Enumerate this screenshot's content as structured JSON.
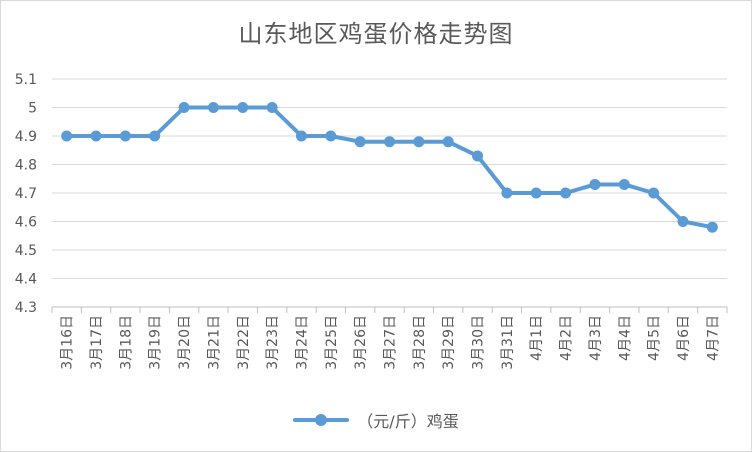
{
  "chart_data": {
    "type": "line",
    "title": "山东地区鸡蛋价格走势图",
    "categories": [
      "3月16日",
      "3月17日",
      "3月18日",
      "3月19日",
      "3月20日",
      "3月21日",
      "3月22日",
      "3月23日",
      "3月24日",
      "3月25日",
      "3月26日",
      "3月27日",
      "3月28日",
      "3月29日",
      "3月30日",
      "3月31日",
      "4月1日",
      "4月2日",
      "4月3日",
      "4月4日",
      "4月5日",
      "4月6日",
      "4月7日"
    ],
    "series": [
      {
        "name": "（元/斤）鸡蛋",
        "values": [
          4.9,
          4.9,
          4.9,
          4.9,
          5.0,
          5.0,
          5.0,
          5.0,
          4.9,
          4.9,
          4.88,
          4.88,
          4.88,
          4.88,
          4.83,
          4.7,
          4.7,
          4.7,
          4.73,
          4.73,
          4.7,
          4.6,
          4.58
        ]
      }
    ],
    "yticks": [
      "4.3",
      "4.4",
      "4.5",
      "4.6",
      "4.7",
      "4.8",
      "4.9",
      "5",
      "5.1"
    ],
    "ylim": [
      4.3,
      5.1
    ],
    "grid": true,
    "legend": "bottom",
    "color": "#5b9bd5"
  }
}
